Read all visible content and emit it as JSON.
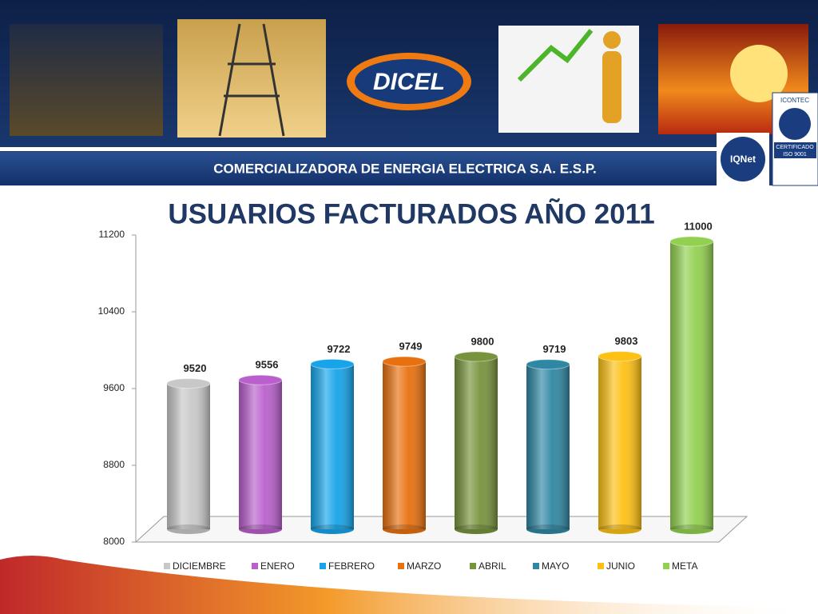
{
  "header": {
    "logo": "DICEL",
    "company": "COMERCIALIZADORA DE ENERGIA ELECTRICA S.A. E.S.P.",
    "cert_left": "IQNet",
    "cert_right": [
      "ICONTEC",
      "CERTIFICADO",
      "ISO 9001"
    ]
  },
  "chart_data": {
    "type": "bar",
    "title": "USUARIOS FACTURADOS AÑO 2011",
    "categories": [
      "DICIEMBRE",
      "ENERO",
      "FEBRERO",
      "MARZO",
      "ABRIL",
      "MAYO",
      "JUNIO",
      "META"
    ],
    "values": [
      9520,
      9556,
      9722,
      9749,
      9800,
      9719,
      9803,
      11000
    ],
    "colors": [
      "#c8c8c8",
      "#b960cc",
      "#17a4ea",
      "#e8700f",
      "#77933c",
      "#2f87a3",
      "#fdc013",
      "#92d050"
    ],
    "ylim": [
      8000,
      11200
    ],
    "yticks": [
      8000,
      8800,
      9600,
      10400,
      11200
    ],
    "legend": "bottom"
  }
}
